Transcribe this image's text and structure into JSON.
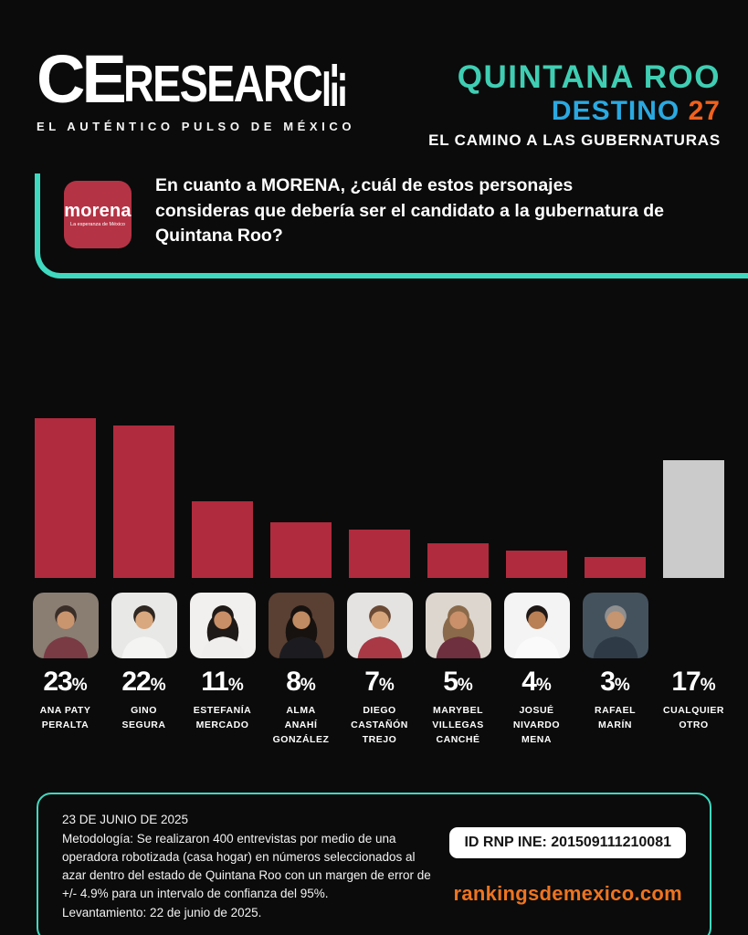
{
  "theme": {
    "background": "#0b0b0b",
    "teal": "#3fd9c0",
    "title_teal": "#3fceb3",
    "blue": "#2aa9e1",
    "orange": "#f1611d",
    "bar_red": "#b02b3d",
    "bar_gray": "#cbcbcb",
    "morena_red": "#b43345",
    "link_orange": "#ee7420"
  },
  "brand": {
    "logo_main": "CE",
    "logo_rest": "RESEARC",
    "logo_h_icon": "bar-chart-h-icon",
    "tagline": "EL AUTÉNTICO PULSO DE MÉXICO"
  },
  "header": {
    "title": "QUINTANA ROO",
    "subtitle_word": "DESTINO",
    "subtitle_number": "27",
    "subtitle2": "EL CAMINO A LAS GUBERNATURAS"
  },
  "question": {
    "logo_text": "morena",
    "logo_sub": "La esperanza de México",
    "text": "En cuanto a MORENA, ¿cuál de estos personajes consideras que debería ser el candidato a la gubernatura de Quintana Roo?"
  },
  "chart_data": {
    "type": "bar",
    "title": "En cuanto a MORENA, ¿cuál de estos personajes consideras que debería ser el candidato a la gubernatura de Quintana Roo?",
    "unit": "%",
    "ylim": [
      0,
      25
    ],
    "grid": false,
    "legend": "none",
    "categories": [
      "ANA PATY\nPERALTA",
      "GINO\nSEGURA",
      "ESTEFANÍA\nMERCADO",
      "ALMA ANAHÍ\nGONZÁLEZ",
      "DIEGO\nCASTAÑÓN\nTREJO",
      "MARYBEL\nVILLEGAS\nCANCHÉ",
      "JOSUÉ\nNIVARDO\nMENA",
      "RAFAEL\nMARÍN",
      "CUALQUIER\nOTRO"
    ],
    "values": [
      23,
      22,
      11,
      8,
      7,
      5,
      4,
      3,
      17
    ],
    "bar_colors": [
      "#b02b3d",
      "#b02b3d",
      "#b02b3d",
      "#b02b3d",
      "#b02b3d",
      "#b02b3d",
      "#b02b3d",
      "#b02b3d",
      "#cbcbcb"
    ],
    "photos": [
      {
        "bg": "#8a7d72",
        "hair": "#3a2e28",
        "skin": "#c9956f",
        "shirt": "#7a3b45",
        "long_hair": false
      },
      {
        "bg": "#e8e8e6",
        "hair": "#2e2620",
        "skin": "#d9a87e",
        "shirt": "#f4f4f2",
        "long_hair": false
      },
      {
        "bg": "#f2f0ee",
        "hair": "#1f1a18",
        "skin": "#c98f66",
        "shirt": "#efeeec",
        "long_hair": true
      },
      {
        "bg": "#5a3f33",
        "hair": "#17120f",
        "skin": "#c08a62",
        "shirt": "#1c1c20",
        "long_hair": true
      },
      {
        "bg": "#e5e3e1",
        "hair": "#6b4a35",
        "skin": "#d8a67c",
        "shirt": "#a83945",
        "long_hair": false
      },
      {
        "bg": "#ddd6cf",
        "hair": "#8a6a4a",
        "skin": "#c9906a",
        "shirt": "#6e2f3e",
        "long_hair": true
      },
      {
        "bg": "#f4f4f4",
        "hair": "#1d1715",
        "skin": "#b97f55",
        "shirt": "#fafafa",
        "long_hair": false
      },
      {
        "bg": "#44525e",
        "hair": "#8f8f8f",
        "skin": "#c49570",
        "shirt": "#2e3a46",
        "long_hair": false
      },
      null
    ]
  },
  "footer": {
    "date": "23 DE JUNIO DE 2025",
    "methodology": "Metodología: Se realizaron 400 entrevistas por medio de una operadora robotizada (casa hogar) en números seleccionados al azar dentro del estado de Quintana Roo con un margen de error de +/- 4.9% para un intervalo de confianza del 95%.",
    "fieldwork": "Levantamiento: 22 de junio de 2025.",
    "id_label": "ID RNP INE: 201509111210081",
    "website": "rankingsdemexico.com"
  }
}
